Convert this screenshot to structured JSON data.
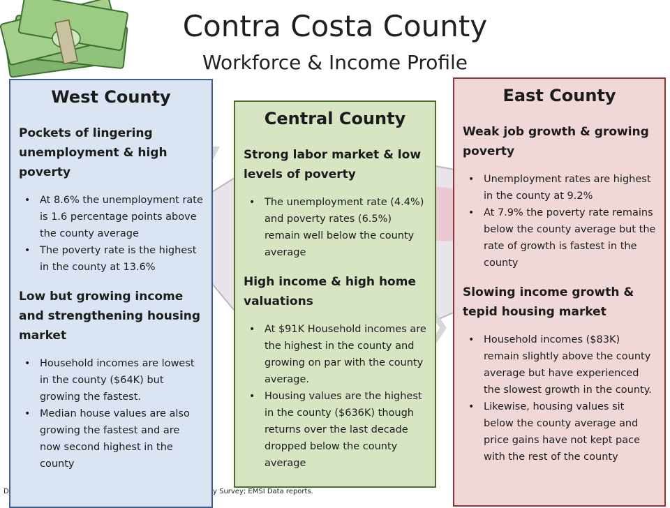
{
  "title": "Contra Costa County",
  "subtitle": "Workforce & Income  Profile",
  "decor": {
    "money_icon": "money-stack-icon",
    "map_icon": "county-map-icon"
  },
  "source_fragments": [
    "D",
    "y Survey; EMSI Data reports."
  ],
  "panels": {
    "west": {
      "name": "West County",
      "sections": [
        {
          "heading": "Pockets of lingering unemployment & high poverty",
          "bullets": [
            "At 8.6% the unemployment rate is 1.6 percentage points above the county average",
            "The poverty rate is the highest in the county at 13.6%"
          ]
        },
        {
          "heading": "Low but growing income and strengthening housing market",
          "bullets": [
            "Household incomes are lowest in the county ($64K) but growing the fastest.",
            "Median house values are also growing the fastest and are now second highest in the county"
          ]
        }
      ]
    },
    "central": {
      "name": "Central County",
      "sections": [
        {
          "heading": "Strong labor market & low levels of poverty",
          "bullets": [
            "The unemployment rate (4.4%) and poverty rates (6.5%) remain well below the county average"
          ]
        },
        {
          "heading": "High income & high home valuations",
          "bullets": [
            "At $91K Household incomes are the highest in the county and growing on par with the county average.",
            "Housing values are the highest in the county ($636K) though returns over the last decade dropped below the county average"
          ]
        }
      ]
    },
    "east": {
      "name": "East County",
      "sections": [
        {
          "heading": "Weak job growth & growing poverty",
          "bullets": [
            "Unemployment rates are highest in the county at 9.2%",
            "At  7.9% the poverty rate remains below the county average but the rate of growth is fastest in the county"
          ]
        },
        {
          "heading": "Slowing income growth & tepid housing market",
          "bullets": [
            "Household incomes ($83K) remain slightly above the county average but have experienced the slowest growth in the county.",
            "Likewise, housing values sit below the county average and price gains have not kept pace with the rest of the county"
          ]
        }
      ]
    }
  }
}
